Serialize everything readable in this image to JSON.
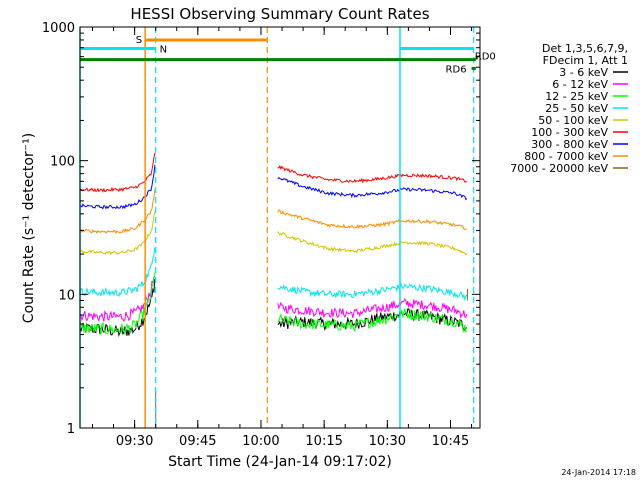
{
  "chart_data": {
    "type": "line",
    "title": "HESSI Observing Summary Count Rates",
    "xlabel": "Start Time (24-Jan-14 09:17:02)",
    "ylabel": "Count Rate (s⁻¹ detector⁻¹)",
    "yscale": "log",
    "ylim": [
      1,
      1000
    ],
    "xlim": [
      "09:17:02",
      "10:52:00"
    ],
    "x_ticks": [
      "09:30",
      "09:45",
      "10:00",
      "10:15",
      "10:30",
      "10:45"
    ],
    "y_ticks": [
      "1",
      "10",
      "100",
      "1000"
    ],
    "grid": false,
    "legend_position": "right",
    "legend_header": [
      "Det 1,3,5,6,7,9,",
      "FDecim 1, Att 1"
    ],
    "footer_stamp": "24-Jan-2014 17:18",
    "series": [
      {
        "name": "3 - 6 keV",
        "color": "#000000",
        "segments": [
          {
            "x": [
              "09:17",
              "09:22",
              "09:27",
              "09:30",
              "09:32",
              "09:34",
              "09:35"
            ],
            "y": [
              5.5,
              5.5,
              5.2,
              5.5,
              6.5,
              9,
              14
            ]
          },
          {
            "x": [
              "10:04",
              "10:10",
              "10:16",
              "10:22",
              "10:28",
              "10:34",
              "10:40",
              "10:46",
              "10:49"
            ],
            "y": [
              6,
              6.2,
              6,
              6,
              6.6,
              7.2,
              6.8,
              6.2,
              5.8
            ]
          }
        ]
      },
      {
        "name": "6 - 12 keV",
        "color": "#ff00ff",
        "segments": [
          {
            "x": [
              "09:17",
              "09:22",
              "09:27",
              "09:30",
              "09:32",
              "09:34",
              "09:35"
            ],
            "y": [
              7,
              6.8,
              6.8,
              7.2,
              8,
              11,
              16
            ]
          },
          {
            "x": [
              "10:04",
              "10:10",
              "10:16",
              "10:22",
              "10:28",
              "10:34",
              "10:40",
              "10:46",
              "10:49"
            ],
            "y": [
              8,
              7.6,
              7.3,
              7.2,
              7.8,
              8.6,
              8.3,
              7.6,
              7
            ]
          }
        ]
      },
      {
        "name": "12 - 25 keV",
        "color": "#00ff00",
        "segments": [
          {
            "x": [
              "09:17",
              "09:22",
              "09:27",
              "09:30",
              "09:32",
              "09:34",
              "09:35"
            ],
            "y": [
              5.6,
              5.5,
              5.4,
              5.8,
              7,
              10,
              15
            ]
          },
          {
            "x": [
              "10:04",
              "10:10",
              "10:16",
              "10:22",
              "10:28",
              "10:34",
              "10:40",
              "10:46",
              "10:49"
            ],
            "y": [
              6.5,
              6,
              5.9,
              5.8,
              6.4,
              7.2,
              6.8,
              6.3,
              5.5
            ]
          }
        ]
      },
      {
        "name": "25 - 50 keV",
        "color": "#00e5ee",
        "segments": [
          {
            "x": [
              "09:17",
              "09:22",
              "09:27",
              "09:30",
              "09:32",
              "09:34",
              "09:35"
            ],
            "y": [
              10.5,
              10.3,
              10.3,
              10.8,
              12,
              16,
              26
            ]
          },
          {
            "x": [
              "10:04",
              "10:10",
              "10:16",
              "10:22",
              "10:28",
              "10:34",
              "10:40",
              "10:46",
              "10:49"
            ],
            "y": [
              11.5,
              10.5,
              10,
              10,
              10.6,
              11.5,
              11,
              10.2,
              9.5
            ]
          }
        ]
      },
      {
        "name": "50 - 100 keV",
        "color": "#d4c400",
        "segments": [
          {
            "x": [
              "09:17",
              "09:22",
              "09:27",
              "09:30",
              "09:32",
              "09:34",
              "09:35"
            ],
            "y": [
              21,
              20.5,
              20.5,
              21.5,
              24,
              30,
              45
            ]
          },
          {
            "x": [
              "10:04",
              "10:10",
              "10:16",
              "10:22",
              "10:28",
              "10:34",
              "10:40",
              "10:46",
              "10:49"
            ],
            "y": [
              29,
              25,
              22,
              21,
              22.5,
              24.5,
              24,
              22,
              20
            ]
          }
        ]
      },
      {
        "name": "100 - 300 keV",
        "color": "#ff0000",
        "segments": [
          {
            "x": [
              "09:17",
              "09:22",
              "09:27",
              "09:30",
              "09:32",
              "09:34",
              "09:35"
            ],
            "y": [
              61,
              60,
              61,
              63,
              68,
              80,
              125
            ]
          },
          {
            "x": [
              "10:04",
              "10:10",
              "10:16",
              "10:22",
              "10:28",
              "10:34",
              "10:40",
              "10:46",
              "10:49"
            ],
            "y": [
              90,
              78,
              72,
              70,
              73,
              78,
              77,
              74,
              70
            ]
          }
        ]
      },
      {
        "name": "300 - 800 keV",
        "color": "#0000ff",
        "segments": [
          {
            "x": [
              "09:17",
              "09:22",
              "09:27",
              "09:30",
              "09:32",
              "09:34",
              "09:35"
            ],
            "y": [
              46,
              45,
              45,
              47,
              52,
              62,
              100
            ]
          },
          {
            "x": [
              "10:04",
              "10:10",
              "10:16",
              "10:22",
              "10:28",
              "10:34",
              "10:40",
              "10:46",
              "10:49"
            ],
            "y": [
              75,
              64,
              57,
              55,
              57,
              61,
              60,
              57,
              52
            ]
          }
        ]
      },
      {
        "name": "800 - 7000 keV",
        "color": "#ff8c00",
        "segments": [
          {
            "x": [
              "09:17",
              "09:22",
              "09:27",
              "09:30",
              "09:32",
              "09:34",
              "09:35"
            ],
            "y": [
              30,
              29.5,
              29.5,
              31,
              35,
              42,
              65
            ]
          },
          {
            "x": [
              "10:04",
              "10:10",
              "10:16",
              "10:22",
              "10:28",
              "10:34",
              "10:40",
              "10:46",
              "10:49"
            ],
            "y": [
              42,
              37,
              33,
              32,
              33,
              35.5,
              35,
              33,
              31
            ]
          }
        ]
      },
      {
        "name": "7000 - 20000 keV",
        "color": "#8b6508",
        "segments": [
          {
            "x": [
              "09:35",
              "09:35"
            ],
            "y": [
              1,
              1.9
            ]
          },
          {
            "x": [
              "10:49",
              "10:49"
            ],
            "y": [
              9,
              11
            ]
          }
        ]
      }
    ],
    "annotations": {
      "solid_vlines": [
        {
          "x": "09:17:02",
          "color": "#00e5ee"
        },
        {
          "x": "09:32:30",
          "color": "#ff8c00"
        },
        {
          "x": "10:33:00",
          "color": "#00e5ee"
        }
      ],
      "dashed_vlines": [
        {
          "x": "09:35:00",
          "color": "#00e5ee"
        },
        {
          "x": "10:01:30",
          "color": "#ff8c00"
        },
        {
          "x": "10:50:30",
          "color": "#00e5ee"
        }
      ],
      "bars": [
        {
          "label": "S",
          "color": "#ff8c00",
          "x": [
            "09:32:30",
            "10:01:30"
          ],
          "y": 800
        },
        {
          "label": "N",
          "color": "#00e5ee",
          "x": [
            "09:17:02",
            "09:35:00"
          ],
          "y": 690
        },
        {
          "label": "",
          "color": "#00e5ee",
          "x": [
            "10:33:00",
            "10:50:30"
          ],
          "y": 690
        },
        {
          "label": "",
          "color": "#008000",
          "x": [
            "09:17:02",
            "10:51:00"
          ],
          "y": 570
        },
        {
          "label": "RD0",
          "color": "#008000",
          "x": [
            "10:51:00",
            "10:51:30"
          ],
          "y": 590
        },
        {
          "label": "RD6",
          "color": "#008000",
          "x": [
            "10:50:00",
            "10:51:00"
          ],
          "y": 490
        }
      ]
    }
  }
}
